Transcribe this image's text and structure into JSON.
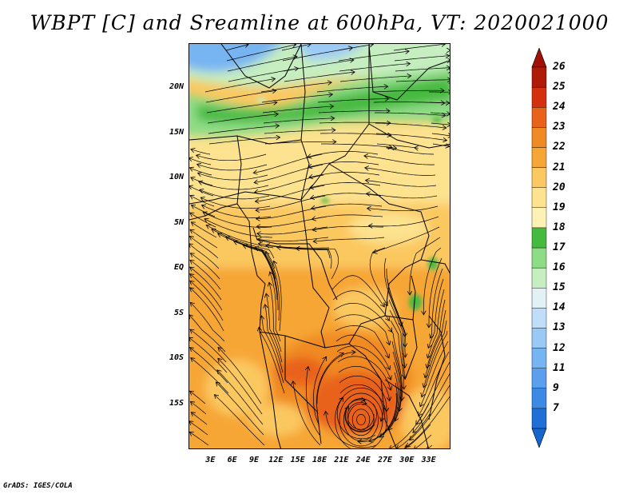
{
  "title": "WBPT [C] and Sreamline at 600hPa, VT: 2020021000",
  "footer": "GrADS: IGES/COLA",
  "map": {
    "lon_range": [
      0,
      36
    ],
    "lat_range": [
      -20,
      25
    ],
    "lat_labels": [
      "20N",
      "15N",
      "10N",
      "5N",
      "EQ",
      "5S",
      "10S",
      "15S"
    ],
    "lat_values": [
      20,
      15,
      10,
      5,
      0,
      -5,
      -10,
      -15
    ],
    "lon_labels": [
      "3E",
      "6E",
      "9E",
      "12E",
      "15E",
      "18E",
      "21E",
      "24E",
      "27E",
      "30E",
      "33E"
    ],
    "lon_values": [
      3,
      6,
      9,
      12,
      15,
      18,
      21,
      24,
      27,
      30,
      33
    ]
  },
  "colorbar": {
    "labels": [
      "7",
      "9",
      "11",
      "12",
      "13",
      "14",
      "15",
      "16",
      "17",
      "18",
      "19",
      "20",
      "21",
      "22",
      "23",
      "24",
      "25",
      "26"
    ],
    "colors": [
      "#1f6fd6",
      "#3d8ae6",
      "#5aa0ee",
      "#77b4f2",
      "#9bc9f6",
      "#c0ddfa",
      "#e2f2f4",
      "#c6eec0",
      "#8fdc86",
      "#46b93f",
      "#fdf2b4",
      "#fde28f",
      "#fbc861",
      "#f6a634",
      "#f08a24",
      "#e8621a",
      "#d43010",
      "#b01a08"
    ],
    "cap_top": "#a01005",
    "cap_bottom": "#1565cf"
  }
}
